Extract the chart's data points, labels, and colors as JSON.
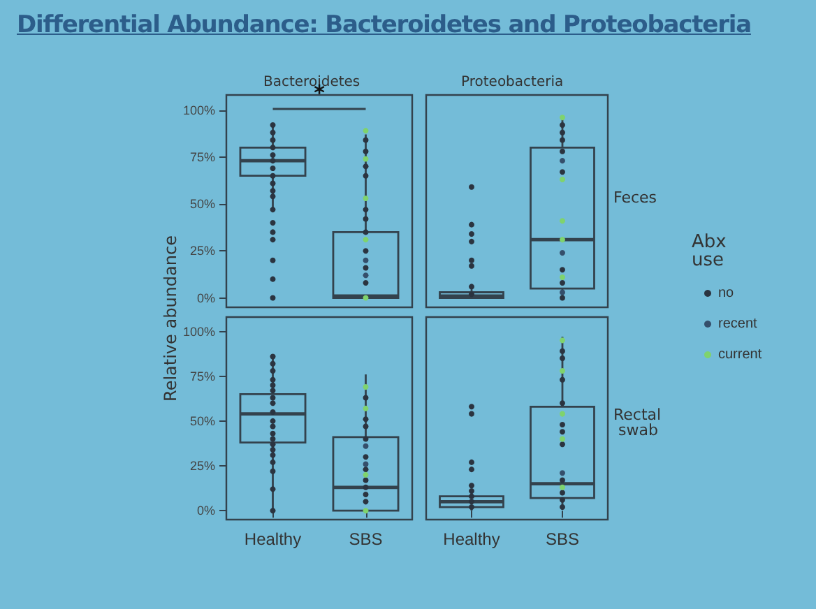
{
  "chart_data": [
    {
      "type": "box",
      "title": "Bacteroidetes",
      "ylabel": "Relative abundance",
      "categories": [
        "Healthy",
        "SBS"
      ],
      "ylim": [
        -5,
        108
      ],
      "yticks": [
        {
          "value": 0,
          "label": "0%"
        },
        {
          "value": 25,
          "label": "25%"
        },
        {
          "value": 50,
          "label": "50%"
        },
        {
          "value": 75,
          "label": "75%"
        },
        {
          "value": 100,
          "label": "100%"
        }
      ],
      "tick_labels": "y",
      "grid": false,
      "marker": "circle",
      "annotations": [
        "Differential Abundance:  Bacteroidetes and Proteobacteria",
        "*"
      ],
      "series": [
        {
          "color": "#33424d",
          "boxes": [
            {
              "low": 47,
              "q1": 65,
              "median": 73,
              "q3": 80,
              "high": 92
            },
            {
              "low": 0,
              "q1": 0,
              "median": 1,
              "q3": 35,
              "high": 87
            }
          ]
        },
        {
          "type": "scatter",
          "color": "#2b3440",
          "x": [
            "Healthy",
            "Healthy",
            "Healthy",
            "Healthy",
            "Healthy",
            "Healthy",
            "Healthy",
            "Healthy",
            "Healthy",
            "Healthy",
            "Healthy",
            "Healthy",
            "Healthy",
            "Healthy",
            "Healthy",
            "Healthy",
            "Healthy",
            "Healthy",
            "SBS",
            "SBS",
            "SBS",
            "SBS",
            "SBS",
            "SBS",
            "SBS",
            "SBS",
            "SBS",
            "SBS"
          ],
          "values": [
            92,
            88,
            84,
            80,
            76,
            73,
            69,
            65,
            61,
            57,
            54,
            47,
            40,
            35,
            31,
            20,
            10,
            0,
            84,
            78,
            70,
            65,
            47,
            42,
            35,
            25,
            16,
            8
          ]
        },
        {
          "type": "scatter",
          "color": "#354f6b",
          "x": [
            "SBS",
            "SBS"
          ],
          "values": [
            20,
            12
          ]
        },
        {
          "type": "scatter",
          "color": "#7fd36d",
          "x": [
            "SBS",
            "SBS",
            "SBS",
            "SBS",
            "SBS"
          ],
          "values": [
            89,
            74,
            53,
            31,
            0
          ]
        }
      ]
    },
    {
      "type": "box",
      "title": "Proteobacteria",
      "subtitle": "Feces",
      "categories": [
        "Healthy",
        "SBS"
      ],
      "ylim": [
        -5,
        108
      ],
      "yticks": [
        {
          "value": 0,
          "label": "0%"
        },
        {
          "value": 25,
          "label": "25%"
        },
        {
          "value": 50,
          "label": "50%"
        },
        {
          "value": 75,
          "label": "75%"
        },
        {
          "value": 100,
          "label": "100%"
        }
      ],
      "tick_labels": false,
      "grid": false,
      "marker": "circle",
      "legend": "right",
      "legend_title": "Abx use",
      "series": [
        {
          "color": "#33424d",
          "boxes": [
            {
              "low": 0,
              "q1": 0,
              "median": 1,
              "q3": 3,
              "high": 6
            },
            {
              "low": 0,
              "q1": 5,
              "median": 31,
              "q3": 80,
              "high": 95
            }
          ]
        },
        {
          "type": "scatter",
          "name": "no",
          "color": "#2b3440",
          "x": [
            "Healthy",
            "Healthy",
            "Healthy",
            "Healthy",
            "Healthy",
            "Healthy",
            "Healthy",
            "Healthy",
            "SBS",
            "SBS",
            "SBS",
            "SBS",
            "SBS",
            "SBS",
            "SBS",
            "SBS"
          ],
          "values": [
            59,
            39,
            34,
            30,
            20,
            17,
            6,
            2,
            92,
            88,
            84,
            78,
            67,
            15,
            8,
            0
          ]
        },
        {
          "type": "scatter",
          "name": "recent",
          "color": "#354f6b",
          "x": [
            "SBS",
            "SBS",
            "SBS"
          ],
          "values": [
            73,
            24,
            3
          ]
        },
        {
          "type": "scatter",
          "name": "current",
          "color": "#7fd36d",
          "x": [
            "SBS",
            "SBS",
            "SBS",
            "SBS",
            "SBS"
          ],
          "values": [
            96,
            63,
            41,
            31,
            11
          ]
        }
      ]
    },
    {
      "type": "box",
      "categories": [
        "Healthy",
        "SBS"
      ],
      "ylim": [
        -5,
        108
      ],
      "yticks": [
        {
          "value": 0,
          "label": "0%"
        },
        {
          "value": 25,
          "label": "25%"
        },
        {
          "value": 50,
          "label": "50%"
        },
        {
          "value": 75,
          "label": "75%"
        },
        {
          "value": 100,
          "label": "100%"
        }
      ],
      "grid": false,
      "marker": "circle",
      "series": [
        {
          "color": "#33424d",
          "boxes": [
            {
              "low": 0,
              "q1": 38,
              "median": 54,
              "q3": 65,
              "high": 86
            },
            {
              "low": 0,
              "q1": 0,
              "median": 13,
              "q3": 41,
              "high": 76
            }
          ]
        },
        {
          "type": "scatter",
          "color": "#2b3440",
          "x": [
            "Healthy",
            "Healthy",
            "Healthy",
            "Healthy",
            "Healthy",
            "Healthy",
            "Healthy",
            "Healthy",
            "Healthy",
            "Healthy",
            "Healthy",
            "Healthy",
            "Healthy",
            "Healthy",
            "Healthy",
            "Healthy",
            "Healthy",
            "Healthy",
            "Healthy",
            "Healthy",
            "SBS",
            "SBS",
            "SBS",
            "SBS",
            "SBS",
            "SBS",
            "SBS",
            "SBS",
            "SBS",
            "SBS"
          ],
          "values": [
            86,
            82,
            78,
            73,
            70,
            67,
            63,
            60,
            55,
            50,
            47,
            43,
            40,
            37,
            34,
            31,
            27,
            22,
            12,
            0,
            63,
            51,
            47,
            40,
            30,
            23,
            17,
            13,
            9,
            5
          ]
        },
        {
          "type": "scatter",
          "color": "#354f6b",
          "x": [
            "SBS",
            "SBS"
          ],
          "values": [
            36,
            26
          ]
        },
        {
          "type": "scatter",
          "color": "#7fd36d",
          "x": [
            "SBS",
            "SBS",
            "SBS",
            "SBS"
          ],
          "values": [
            69,
            57,
            20,
            0
          ]
        }
      ]
    },
    {
      "type": "box",
      "subtitle": "Rectal swab",
      "categories": [
        "Healthy",
        "SBS"
      ],
      "ylim": [
        -5,
        108
      ],
      "yticks": [
        {
          "value": 0,
          "label": "0%"
        },
        {
          "value": 25,
          "label": "25%"
        },
        {
          "value": 50,
          "label": "50%"
        },
        {
          "value": 75,
          "label": "75%"
        },
        {
          "value": 100,
          "label": "100%"
        }
      ],
      "tick_labels": "x",
      "grid": false,
      "marker": "circle",
      "series": [
        {
          "color": "#33424d",
          "boxes": [
            {
              "low": 0,
              "q1": 2,
              "median": 5,
              "q3": 8,
              "high": 12
            },
            {
              "low": 2,
              "q1": 7,
              "median": 15,
              "q3": 58,
              "high": 97
            }
          ]
        },
        {
          "type": "scatter",
          "color": "#2b3440",
          "x": [
            "Healthy",
            "Healthy",
            "Healthy",
            "Healthy",
            "Healthy",
            "Healthy",
            "Healthy",
            "Healthy",
            "Healthy",
            "SBS",
            "SBS",
            "SBS",
            "SBS",
            "SBS",
            "SBS",
            "SBS",
            "SBS",
            "SBS",
            "SBS",
            "SBS"
          ],
          "values": [
            58,
            54,
            27,
            23,
            14,
            11,
            8,
            5,
            2,
            89,
            85,
            73,
            60,
            48,
            44,
            37,
            17,
            10,
            6,
            2
          ]
        },
        {
          "type": "scatter",
          "color": "#354f6b",
          "x": [
            "SBS"
          ],
          "values": [
            21
          ]
        },
        {
          "type": "scatter",
          "color": "#7fd36d",
          "x": [
            "SBS",
            "SBS",
            "SBS",
            "SBS",
            "SBS"
          ],
          "values": [
            95,
            78,
            54,
            40,
            13
          ]
        }
      ]
    }
  ]
}
